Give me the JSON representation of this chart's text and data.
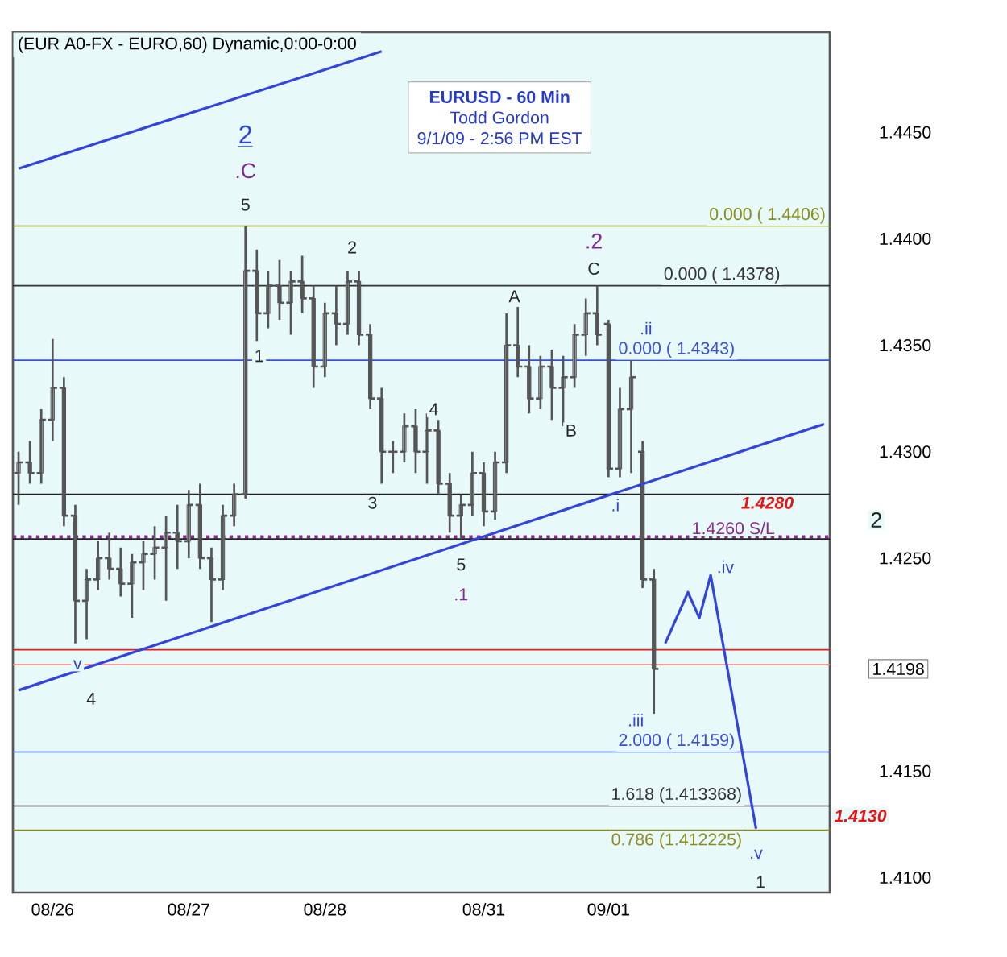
{
  "chart_data": {
    "type": "candlestick",
    "title": "EURUSD - 60 Min",
    "subtitle": "Todd Gordon",
    "color": "#555555",
    "categories": [
      null,
      null,
      null,
      "08/26",
      null,
      null,
      null,
      null,
      null,
      null,
      null,
      null,
      null,
      null,
      null,
      "08/27",
      null,
      null,
      null,
      null,
      null,
      null,
      null,
      null,
      null,
      null,
      null,
      "08/28",
      null,
      null,
      null,
      null,
      null,
      null,
      null,
      null,
      null,
      null,
      null,
      null,
      null,
      "08/31",
      null,
      null,
      null,
      null,
      null,
      null,
      null,
      null,
      null,
      null,
      "09/01",
      null,
      null,
      null,
      null,
      null,
      null,
      null,
      null,
      null,
      null,
      null,
      null,
      null,
      null,
      null,
      null,
      null,
      null,
      null
    ],
    "ohlc": [
      [
        1.429,
        1.43,
        1.4275,
        1.4295
      ],
      [
        1.4295,
        1.4305,
        1.4285,
        1.429
      ],
      [
        1.429,
        1.432,
        1.4285,
        1.4315
      ],
      [
        1.4315,
        1.4353,
        1.4305,
        1.433
      ],
      [
        1.433,
        1.4335,
        1.4265,
        1.427
      ],
      [
        1.427,
        1.4275,
        1.421,
        1.423
      ],
      [
        1.423,
        1.4245,
        1.4212,
        1.424
      ],
      [
        1.424,
        1.4258,
        1.4235,
        1.425
      ],
      [
        1.425,
        1.4262,
        1.424,
        1.4245
      ],
      [
        1.4245,
        1.4255,
        1.4232,
        1.4238
      ],
      [
        1.4238,
        1.4252,
        1.4222,
        1.4248
      ],
      [
        1.4248,
        1.4258,
        1.4235,
        1.4252
      ],
      [
        1.4252,
        1.4265,
        1.424,
        1.4255
      ],
      [
        1.4255,
        1.427,
        1.423,
        1.4262
      ],
      [
        1.4262,
        1.4275,
        1.4245,
        1.4258
      ],
      [
        1.4258,
        1.4282,
        1.425,
        1.4275
      ],
      [
        1.4275,
        1.4285,
        1.4245,
        1.425
      ],
      [
        1.425,
        1.4255,
        1.422,
        1.424
      ],
      [
        1.424,
        1.4275,
        1.4235,
        1.427
      ],
      [
        1.427,
        1.4285,
        1.4265,
        1.428
      ],
      [
        1.428,
        1.4406,
        1.4278,
        1.4385
      ],
      [
        1.4385,
        1.4395,
        1.4352,
        1.4365
      ],
      [
        1.4365,
        1.4385,
        1.4358,
        1.4378
      ],
      [
        1.4378,
        1.439,
        1.4362,
        1.437
      ],
      [
        1.437,
        1.4385,
        1.4355,
        1.438
      ],
      [
        1.438,
        1.4392,
        1.4365,
        1.4372
      ],
      [
        1.4372,
        1.4378,
        1.433,
        1.434
      ],
      [
        1.434,
        1.437,
        1.4335,
        1.4365
      ],
      [
        1.4365,
        1.4378,
        1.435,
        1.436
      ],
      [
        1.436,
        1.4385,
        1.4355,
        1.438
      ],
      [
        1.438,
        1.4385,
        1.435,
        1.4355
      ],
      [
        1.4355,
        1.436,
        1.432,
        1.4325
      ],
      [
        1.4325,
        1.433,
        1.4285,
        1.43
      ],
      [
        1.43,
        1.4305,
        1.429,
        1.43
      ],
      [
        1.43,
        1.4318,
        1.4295,
        1.4312
      ],
      [
        1.4312,
        1.432,
        1.429,
        1.43
      ],
      [
        1.43,
        1.4318,
        1.4285,
        1.431
      ],
      [
        1.431,
        1.4315,
        1.428,
        1.4285
      ],
      [
        1.4285,
        1.429,
        1.4262,
        1.427
      ],
      [
        1.427,
        1.428,
        1.4259,
        1.4275
      ],
      [
        1.4275,
        1.43,
        1.427,
        1.429
      ],
      [
        1.429,
        1.4295,
        1.4265,
        1.4272
      ],
      [
        1.4272,
        1.43,
        1.4268,
        1.4295
      ],
      [
        1.4295,
        1.4365,
        1.429,
        1.435
      ],
      [
        1.435,
        1.4368,
        1.4335,
        1.434
      ],
      [
        1.434,
        1.435,
        1.4318,
        1.4325
      ],
      [
        1.4325,
        1.4345,
        1.432,
        1.434
      ],
      [
        1.434,
        1.4348,
        1.4315,
        1.433
      ],
      [
        1.433,
        1.4345,
        1.4312,
        1.4335
      ],
      [
        1.4335,
        1.436,
        1.433,
        1.4355
      ],
      [
        1.4355,
        1.4372,
        1.4345,
        1.4365
      ],
      [
        1.4365,
        1.4378,
        1.435,
        1.4355
      ],
      [
        1.436,
        1.4362,
        1.4288,
        1.4292
      ],
      [
        1.4292,
        1.433,
        1.4288,
        1.432
      ],
      [
        1.432,
        1.4343,
        1.429,
        1.4335
      ],
      [
        1.43,
        1.4305,
        1.4236,
        1.424
      ],
      [
        1.424,
        1.4245,
        1.4177,
        1.4198
      ],
      null,
      null,
      null,
      null,
      null,
      null,
      null,
      null,
      null,
      null,
      null,
      null,
      null,
      null,
      null
    ],
    "series": [
      {
        "type": "line",
        "color": "#3344dd",
        "values": [
          1.4188,
          null,
          null,
          null,
          null,
          null,
          null,
          null,
          null,
          null,
          null,
          null,
          null,
          null,
          null,
          null,
          null,
          null,
          null,
          null,
          null,
          null,
          null,
          null,
          null,
          null,
          null,
          null,
          null,
          null,
          null,
          null,
          null,
          null,
          null,
          null,
          null,
          null,
          null,
          null,
          null,
          null,
          null,
          null,
          null,
          null,
          null,
          null,
          null,
          null,
          null,
          null,
          null,
          null,
          null,
          null,
          null,
          null,
          null,
          null,
          null,
          null,
          null,
          null,
          null,
          null,
          null,
          null,
          null,
          null,
          null,
          1.4313
        ]
      },
      {
        "type": "line",
        "color": "#3344dd",
        "values": [
          1.4433,
          null,
          null,
          null,
          null,
          null,
          null,
          null,
          null,
          null,
          null,
          null,
          null,
          null,
          null,
          null,
          null,
          null,
          null,
          null,
          null,
          null,
          null,
          null,
          null,
          null,
          null,
          null,
          null,
          null,
          null,
          null,
          1.4488,
          null,
          null,
          null,
          null,
          null,
          null,
          null,
          null,
          null,
          null,
          null,
          null,
          null,
          null,
          null,
          null,
          null,
          null,
          null,
          null,
          null,
          null,
          null,
          null,
          null,
          null,
          null,
          null,
          null,
          null,
          null,
          null,
          null,
          null,
          null,
          null,
          null,
          null,
          null
        ]
      },
      {
        "type": "line",
        "color": "#3344dd",
        "values": [
          null,
          null,
          null,
          null,
          null,
          null,
          null,
          null,
          null,
          null,
          null,
          null,
          null,
          null,
          null,
          null,
          null,
          null,
          null,
          null,
          null,
          null,
          null,
          null,
          null,
          null,
          null,
          null,
          null,
          null,
          null,
          null,
          null,
          null,
          null,
          null,
          null,
          null,
          null,
          null,
          null,
          null,
          null,
          null,
          null,
          null,
          null,
          null,
          null,
          null,
          null,
          null,
          null,
          null,
          null,
          null,
          null,
          1.421,
          null,
          1.4234,
          1.4222,
          1.4242,
          null,
          null,
          null,
          1.4123,
          null,
          null,
          null,
          null,
          null,
          null
        ]
      }
    ],
    "ylim": [
      1.4093,
      1.4497
    ],
    "yticks": [
      {
        "value": 1.41,
        "label": "1.4100"
      },
      {
        "value": 1.415,
        "label": "1.4150"
      },
      {
        "value": 1.42,
        "label": null
      },
      {
        "value": 1.425,
        "label": "1.4250"
      },
      {
        "value": 1.43,
        "label": "1.4300"
      },
      {
        "value": 1.435,
        "label": "1.4350"
      },
      {
        "value": 1.44,
        "label": "1.4400"
      },
      {
        "value": 1.445,
        "label": "1.4450"
      }
    ],
    "ref_lines": [
      {
        "axis": "y",
        "value": 1.4406,
        "label": "0.000 ( 1.4406)",
        "color": "#8b8b1a"
      },
      {
        "axis": "y",
        "value": 1.4378,
        "label": "0.000 ( 1.4378)",
        "color": "#333333"
      },
      {
        "axis": "y",
        "value": 1.4343,
        "label": "0.000 ( 1.4343)",
        "color": "#3a4fd8"
      },
      {
        "axis": "y",
        "value": 1.4159,
        "label": "2.000 ( 1.4159)",
        "color": "#3a4fd8"
      },
      {
        "axis": "y",
        "value": 1.413368,
        "label": "1.618 (1.413368)",
        "color": "#333333"
      },
      {
        "axis": "y",
        "value": 1.412225,
        "label": "0.786 (1.412225)",
        "color": "#8b8b1a"
      },
      {
        "axis": "y",
        "value": 1.428,
        "color": "#222222"
      },
      {
        "axis": "y",
        "value": 1.426,
        "label": "1.4260 S/L",
        "color": "#8b2a8b",
        "line_style": "dotted"
      },
      {
        "axis": "y",
        "value": 1.4259,
        "color": "#222222"
      },
      {
        "axis": "y",
        "value": 1.4207,
        "color": "#e02020"
      },
      {
        "axis": "y",
        "value": 1.42,
        "color": "#f08080"
      }
    ],
    "annotations": [
      "(EUR A0-FX - EURO,60) Dynamic,0:00-0:00",
      "9/1/09 - 2:56 PM EST",
      "2",
      ".C",
      "5",
      "1",
      "2",
      "3",
      "4",
      "5",
      ".1",
      "A",
      "B",
      "C",
      ".2",
      ".i",
      ".ii",
      ".iii",
      ".iv",
      ".v",
      "1",
      "v",
      "4",
      "2",
      "1.4280",
      "1.4130",
      "1.4198"
    ]
  }
}
